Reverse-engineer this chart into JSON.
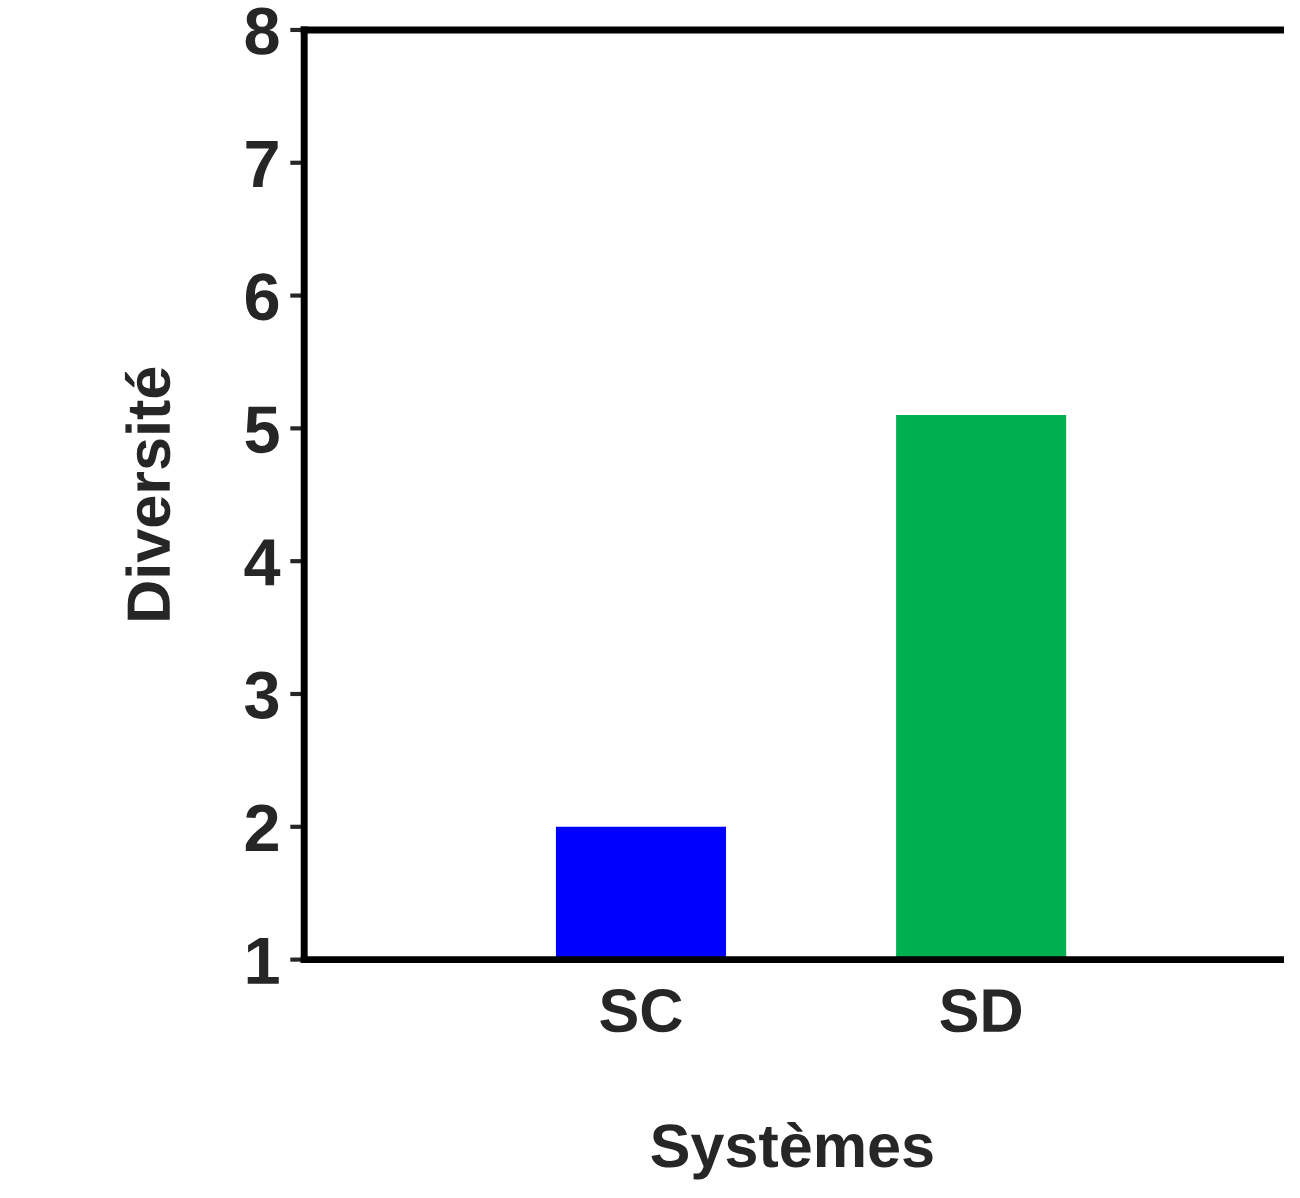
{
  "chart_data": {
    "type": "bar",
    "xlabel": "Systèmes",
    "ylabel": "Diversité",
    "categories": [
      "SC",
      "SD"
    ],
    "values": [
      2,
      5.1
    ],
    "colors": [
      "#0000ff",
      "#00b050"
    ],
    "ylim": [
      1,
      8
    ],
    "yticks": [
      1,
      2,
      3,
      4,
      5,
      6,
      7,
      8
    ],
    "grid": false,
    "legend": false
  }
}
